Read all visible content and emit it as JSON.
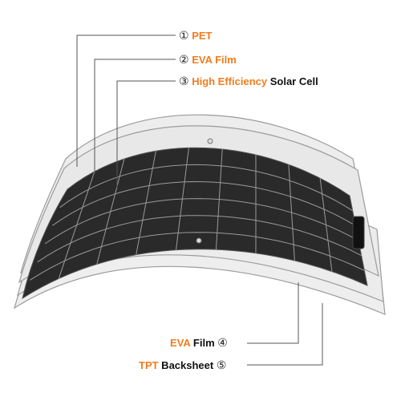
{
  "labels": [
    {
      "marker": "①",
      "highlight": "PET",
      "rest": ""
    },
    {
      "marker": "②",
      "highlight": "EVA Film",
      "rest": ""
    },
    {
      "marker": "③",
      "highlight": "High Efficiency",
      "rest": " Solar Cell"
    },
    {
      "marker": "④",
      "highlight": "EVA",
      "rest": " Film"
    },
    {
      "marker": "⑤",
      "highlight": "TPT",
      "rest": " Backsheet"
    }
  ],
  "colors": {
    "accent": "#f07c1e",
    "cell": "#2a2a2a",
    "grid": "#9a9a9a",
    "layer_fill": "#ececec",
    "layer_stroke": "#9b9b9b",
    "leader": "#555555"
  }
}
